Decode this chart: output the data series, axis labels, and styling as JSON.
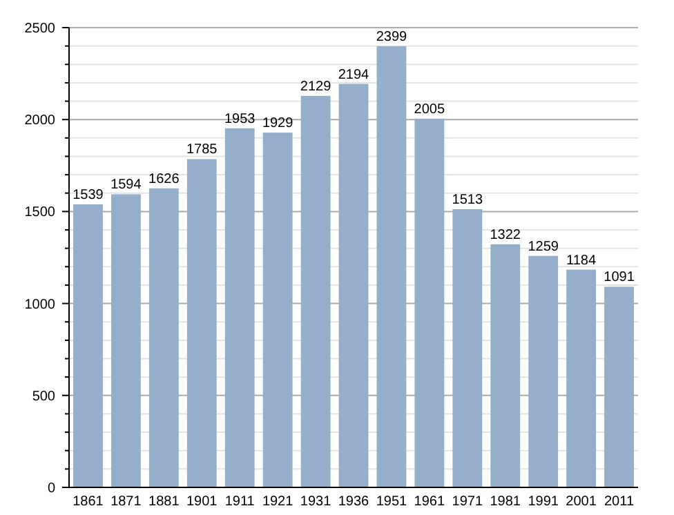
{
  "chart_data": {
    "type": "bar",
    "categories": [
      "1861",
      "1871",
      "1881",
      "1901",
      "1911",
      "1921",
      "1931",
      "1936",
      "1951",
      "1961",
      "1971",
      "1981",
      "1991",
      "2001",
      "2011"
    ],
    "values": [
      1539,
      1594,
      1626,
      1785,
      1953,
      1929,
      2129,
      2194,
      2399,
      2005,
      1513,
      1322,
      1259,
      1184,
      1091
    ],
    "color": "#95afca",
    "data_labels": true,
    "grid": "y",
    "ylim": [
      0,
      2500
    ],
    "yticks": [
      0,
      {
        "value": 100,
        "label": null
      },
      {
        "value": 200,
        "label": null
      },
      {
        "value": 300,
        "label": null
      },
      {
        "value": 400,
        "label": null
      },
      500,
      {
        "value": 600,
        "label": null
      },
      {
        "value": 700,
        "label": null
      },
      {
        "value": 800,
        "label": null
      },
      {
        "value": 900,
        "label": null
      },
      1000,
      {
        "value": 1100,
        "label": null
      },
      {
        "value": 1200,
        "label": null
      },
      {
        "value": 1300,
        "label": null
      },
      {
        "value": 1400,
        "label": null
      },
      1500,
      {
        "value": 1600,
        "label": null
      },
      {
        "value": 1700,
        "label": null
      },
      {
        "value": 1800,
        "label": null
      },
      {
        "value": 1900,
        "label": null
      },
      2000,
      {
        "value": 2100,
        "label": null
      },
      {
        "value": 2200,
        "label": null
      },
      {
        "value": 2300,
        "label": null
      },
      {
        "value": 2400,
        "label": null
      },
      2500
    ]
  }
}
